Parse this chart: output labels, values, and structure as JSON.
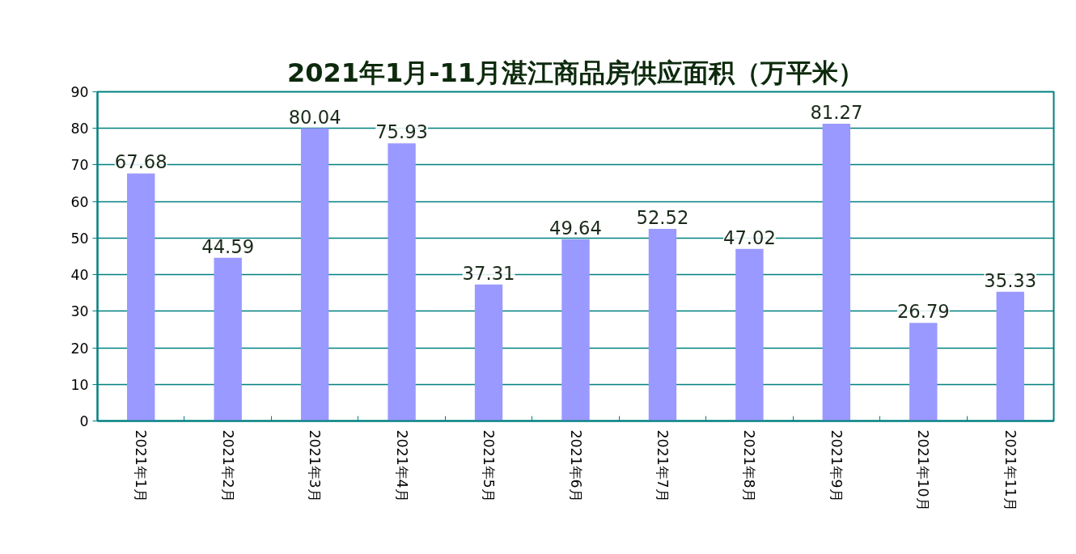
{
  "chart_data": {
    "type": "bar",
    "title": "2021年1月-11月湛江商品房供应面积（万平米）",
    "categories": [
      "2021年1月",
      "2021年2月",
      "2021年3月",
      "2021年4月",
      "2021年5月",
      "2021年6月",
      "2021年7月",
      "2021年8月",
      "2021年9月",
      "2021年10月",
      "2021年11月"
    ],
    "values": [
      67.68,
      44.59,
      80.04,
      75.93,
      37.31,
      49.64,
      52.52,
      47.02,
      81.27,
      26.79,
      35.33
    ],
    "color": "#9999ff",
    "ylim": [
      0,
      90
    ],
    "yticks": [
      0,
      10,
      20,
      30,
      40,
      50,
      60,
      70,
      80,
      90
    ],
    "grid": "y",
    "data_labels": true
  }
}
